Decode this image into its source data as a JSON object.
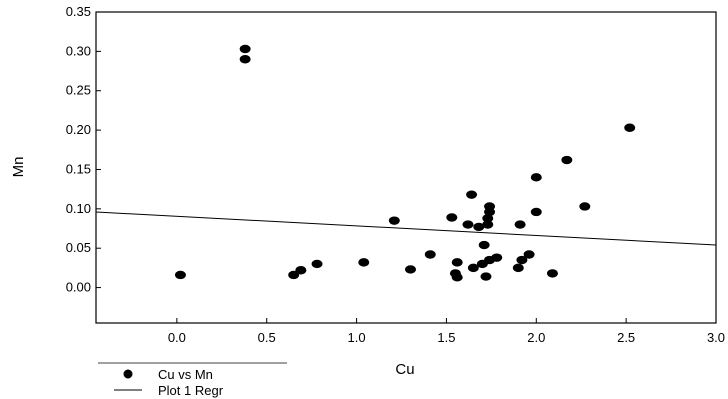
{
  "chart_data": {
    "type": "scatter",
    "xlabel": "Cu",
    "ylabel": "Mn",
    "xlim": [
      -0.45,
      3.0
    ],
    "ylim": [
      -0.045,
      0.35
    ],
    "xticks": [
      "0.0",
      "0.5",
      "1.0",
      "1.5",
      "2.0",
      "2.5",
      "3.0"
    ],
    "yticks": [
      "0.00",
      "0.05",
      "0.10",
      "0.15",
      "0.20",
      "0.25",
      "0.30",
      "0.35"
    ],
    "grid": false,
    "legend_placement": "bottom-left",
    "legend": [
      {
        "label": "Cu vs Mn",
        "marker": "dot"
      },
      {
        "label": "Plot 1 Regr",
        "marker": "line"
      }
    ],
    "series": [
      {
        "name": "Cu vs Mn",
        "color": "#000000",
        "points": [
          [
            0.02,
            0.016
          ],
          [
            0.38,
            0.303
          ],
          [
            0.38,
            0.29
          ],
          [
            0.65,
            0.016
          ],
          [
            0.69,
            0.022
          ],
          [
            0.78,
            0.03
          ],
          [
            1.04,
            0.032
          ],
          [
            1.21,
            0.085
          ],
          [
            1.3,
            0.023
          ],
          [
            1.41,
            0.042
          ],
          [
            1.53,
            0.089
          ],
          [
            1.55,
            0.018
          ],
          [
            1.56,
            0.013
          ],
          [
            1.56,
            0.032
          ],
          [
            1.62,
            0.08
          ],
          [
            1.64,
            0.118
          ],
          [
            1.65,
            0.025
          ],
          [
            1.68,
            0.077
          ],
          [
            1.7,
            0.03
          ],
          [
            1.71,
            0.054
          ],
          [
            1.72,
            0.014
          ],
          [
            1.73,
            0.08
          ],
          [
            1.73,
            0.088
          ],
          [
            1.74,
            0.096
          ],
          [
            1.74,
            0.103
          ],
          [
            1.74,
            0.035
          ],
          [
            1.78,
            0.038
          ],
          [
            1.9,
            0.025
          ],
          [
            1.91,
            0.08
          ],
          [
            1.92,
            0.035
          ],
          [
            1.96,
            0.042
          ],
          [
            2.0,
            0.14
          ],
          [
            2.0,
            0.096
          ],
          [
            2.09,
            0.018
          ],
          [
            2.17,
            0.162
          ],
          [
            2.27,
            0.103
          ],
          [
            2.52,
            0.203
          ]
        ]
      },
      {
        "name": "Plot 1 Regr",
        "color": "#000000",
        "line": [
          [
            -0.45,
            0.096
          ],
          [
            3.0,
            0.054
          ]
        ]
      }
    ]
  }
}
